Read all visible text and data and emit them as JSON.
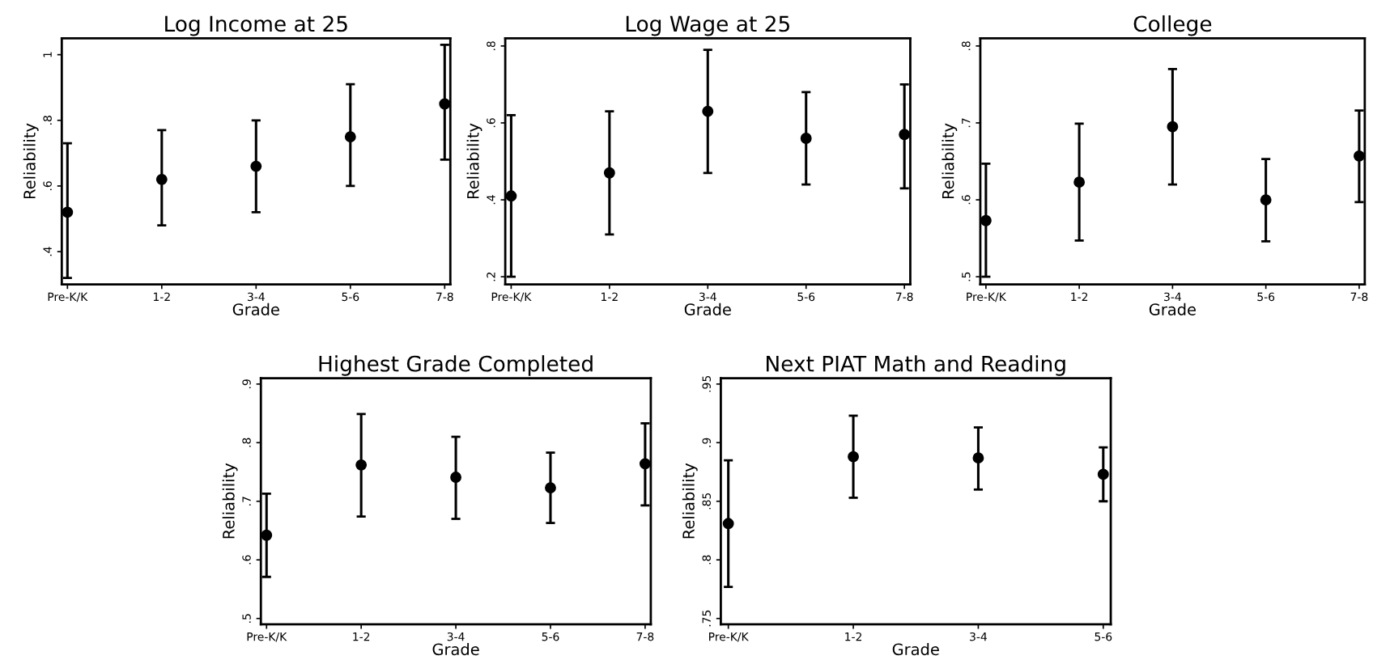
{
  "chart_data": [
    {
      "type": "scatter",
      "title": "Log Income at 25",
      "xlabel": "Grade",
      "ylabel": "Reliability",
      "categories": [
        "Pre-K/K",
        "1-2",
        "3-4",
        "5-6",
        "7-8"
      ],
      "marker": "circle",
      "grid": false,
      "ylim": [
        0.3,
        1.05
      ],
      "yticks": [
        {
          "value": 0.4,
          "label": ".4"
        },
        {
          "value": 0.6,
          "label": ".6"
        },
        {
          "value": 0.8,
          "label": ".8"
        },
        {
          "value": 1,
          "label": "1"
        }
      ],
      "series": [
        {
          "color": "#000000",
          "values": [
            0.52,
            0.62,
            0.66,
            0.75,
            0.85
          ],
          "errors": [
            [
              0.32,
              0.73
            ],
            [
              0.48,
              0.77
            ],
            [
              0.52,
              0.8
            ],
            [
              0.6,
              0.91
            ],
            [
              0.68,
              1.03
            ]
          ]
        }
      ]
    },
    {
      "type": "scatter",
      "title": "Log Wage at 25",
      "xlabel": "Grade",
      "ylabel": "Reliability",
      "categories": [
        "Pre-K/K",
        "1-2",
        "3-4",
        "5-6",
        "7-8"
      ],
      "marker": "circle",
      "grid": false,
      "ylim": [
        0.18,
        0.82
      ],
      "yticks": [
        {
          "value": 0.2,
          "label": ".2"
        },
        {
          "value": 0.4,
          "label": ".4"
        },
        {
          "value": 0.6,
          "label": ".6"
        },
        {
          "value": 0.8,
          "label": ".8"
        }
      ],
      "series": [
        {
          "color": "#000000",
          "values": [
            0.41,
            0.47,
            0.63,
            0.56,
            0.57
          ],
          "errors": [
            [
              0.2,
              0.62
            ],
            [
              0.31,
              0.63
            ],
            [
              0.47,
              0.79
            ],
            [
              0.44,
              0.68
            ],
            [
              0.43,
              0.7
            ]
          ]
        }
      ]
    },
    {
      "type": "scatter",
      "title": "College",
      "xlabel": "Grade",
      "ylabel": "Reliability",
      "categories": [
        "Pre-K/K",
        "1-2",
        "3-4",
        "5-6",
        "7-8"
      ],
      "marker": "circle",
      "grid": false,
      "ylim": [
        0.49,
        0.81
      ],
      "yticks": [
        {
          "value": 0.5,
          "label": ".5"
        },
        {
          "value": 0.6,
          "label": ".6"
        },
        {
          "value": 0.7,
          "label": ".7"
        },
        {
          "value": 0.8,
          "label": ".8"
        }
      ],
      "series": [
        {
          "color": "#000000",
          "values": [
            0.573,
            0.623,
            0.695,
            0.6,
            0.657
          ],
          "errors": [
            [
              0.5,
              0.647
            ],
            [
              0.547,
              0.699
            ],
            [
              0.62,
              0.77
            ],
            [
              0.546,
              0.653
            ],
            [
              0.597,
              0.716
            ]
          ]
        }
      ]
    },
    {
      "type": "scatter",
      "title": "Highest Grade Completed",
      "xlabel": "Grade",
      "ylabel": "Reliability",
      "categories": [
        "Pre-K/K",
        "1-2",
        "3-4",
        "5-6",
        "7-8"
      ],
      "marker": "circle",
      "grid": false,
      "ylim": [
        0.49,
        0.91
      ],
      "yticks": [
        {
          "value": 0.5,
          "label": ".5"
        },
        {
          "value": 0.6,
          "label": ".6"
        },
        {
          "value": 0.7,
          "label": ".7"
        },
        {
          "value": 0.8,
          "label": ".8"
        },
        {
          "value": 0.9,
          "label": ".9"
        }
      ],
      "series": [
        {
          "color": "#000000",
          "values": [
            0.642,
            0.762,
            0.741,
            0.723,
            0.764
          ],
          "errors": [
            [
              0.571,
              0.713
            ],
            [
              0.674,
              0.849
            ],
            [
              0.67,
              0.81
            ],
            [
              0.663,
              0.783
            ],
            [
              0.693,
              0.833
            ]
          ]
        }
      ]
    },
    {
      "type": "scatter",
      "title": "Next PIAT Math and Reading",
      "xlabel": "Grade",
      "ylabel": "Reliability",
      "categories": [
        "Pre-K/K",
        "1-2",
        "3-4",
        "5-6"
      ],
      "marker": "circle",
      "grid": false,
      "ylim": [
        0.745,
        0.955
      ],
      "yticks": [
        {
          "value": 0.75,
          "label": ".75"
        },
        {
          "value": 0.8,
          "label": ".8"
        },
        {
          "value": 0.85,
          "label": ".85"
        },
        {
          "value": 0.9,
          "label": ".9"
        },
        {
          "value": 0.95,
          "label": ".95"
        }
      ],
      "series": [
        {
          "color": "#000000",
          "values": [
            0.831,
            0.888,
            0.887,
            0.873
          ],
          "errors": [
            [
              0.777,
              0.885
            ],
            [
              0.853,
              0.923
            ],
            [
              0.86,
              0.913
            ],
            [
              0.85,
              0.896
            ]
          ]
        }
      ]
    }
  ]
}
